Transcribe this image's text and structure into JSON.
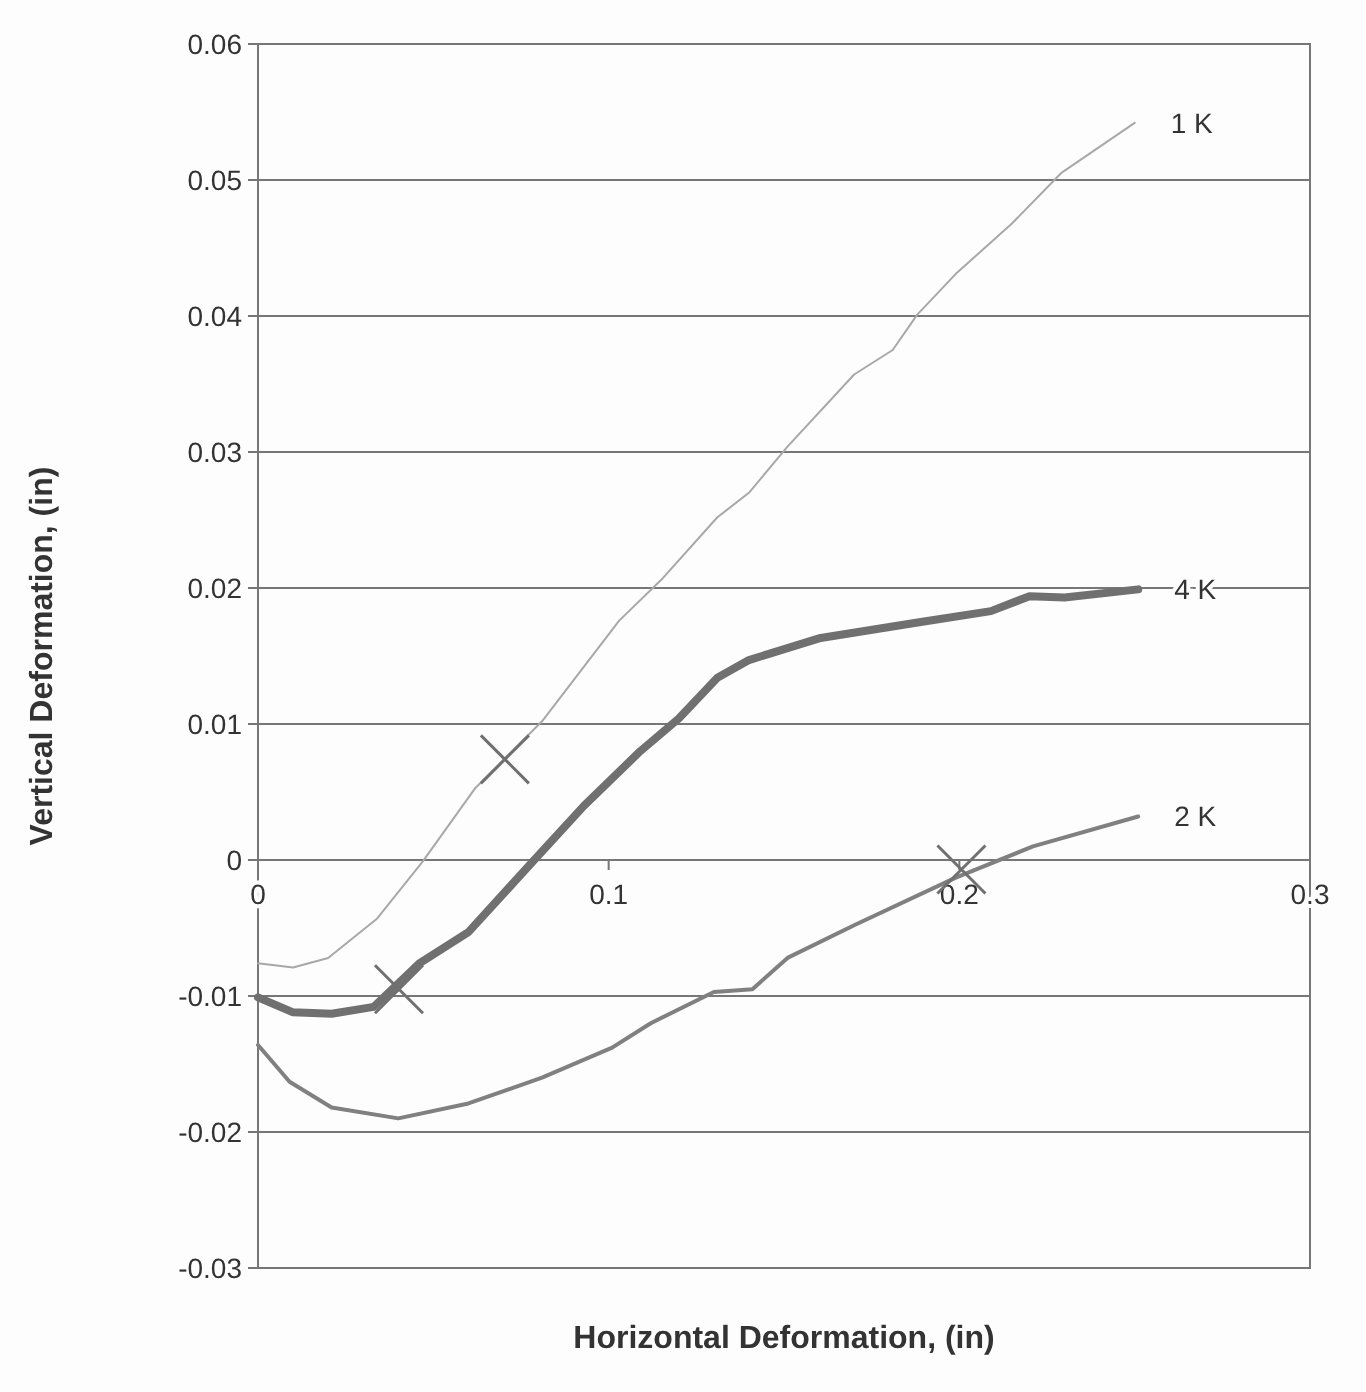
{
  "chart_data": {
    "type": "line",
    "xlabel": "Horizontal Deformation, (in)",
    "ylabel": "Vertical Deformation, (in)",
    "xlim": [
      0,
      0.3
    ],
    "xticks": [
      0,
      0.1,
      0.2,
      0.3
    ],
    "ylim": [
      -0.03,
      0.06
    ],
    "yticks": [
      -0.03,
      -0.02,
      -0.01,
      0,
      0.01,
      0.02,
      0.03,
      0.04,
      0.05,
      0.06
    ],
    "grid": "y",
    "marker": "none",
    "series": [
      {
        "name": "1 K",
        "color": "#a8a8a8",
        "x": [
          0,
          0.01,
          0.02,
          0.034,
          0.047,
          0.062,
          0.081,
          0.103,
          0.115,
          0.131,
          0.14,
          0.151,
          0.17,
          0.181,
          0.188,
          0.199,
          0.215,
          0.229,
          0.25
        ],
        "values": [
          -0.0076,
          -0.0079,
          -0.0072,
          -0.0043,
          -0.0001,
          0.0053,
          0.0102,
          0.0176,
          0.0206,
          0.0252,
          0.027,
          0.0304,
          0.0357,
          0.0375,
          0.0401,
          0.0431,
          0.0468,
          0.0505,
          0.0542
        ]
      },
      {
        "name": "4 K",
        "color": "#707070",
        "x": [
          0,
          0.01,
          0.021,
          0.033,
          0.046,
          0.06,
          0.077,
          0.093,
          0.109,
          0.12,
          0.131,
          0.14,
          0.16,
          0.189,
          0.209,
          0.22,
          0.23,
          0.251
        ],
        "values": [
          -0.0101,
          -0.0112,
          -0.0113,
          -0.0108,
          -0.0076,
          -0.0053,
          -0.0005,
          0.004,
          0.008,
          0.0104,
          0.0134,
          0.0147,
          0.0163,
          0.0175,
          0.0183,
          0.0194,
          0.0193,
          0.0199
        ]
      },
      {
        "name": "2 K",
        "color": "#808080",
        "x": [
          0,
          0.009,
          0.021,
          0.04,
          0.06,
          0.081,
          0.101,
          0.112,
          0.13,
          0.141,
          0.151,
          0.17,
          0.199,
          0.221,
          0.251
        ],
        "values": [
          -0.0136,
          -0.0163,
          -0.0182,
          -0.019,
          -0.0179,
          -0.016,
          -0.0138,
          -0.012,
          -0.0097,
          -0.0095,
          -0.0072,
          -0.0048,
          -0.0013,
          0.001,
          0.0032
        ]
      },
      {
        "type": "scatter",
        "marker": "cross",
        "color": "#707070",
        "x": [
          0.0704,
          0.0402,
          0.2006
        ],
        "values": [
          0.0074,
          -0.0095,
          -0.0007
        ]
      }
    ]
  }
}
